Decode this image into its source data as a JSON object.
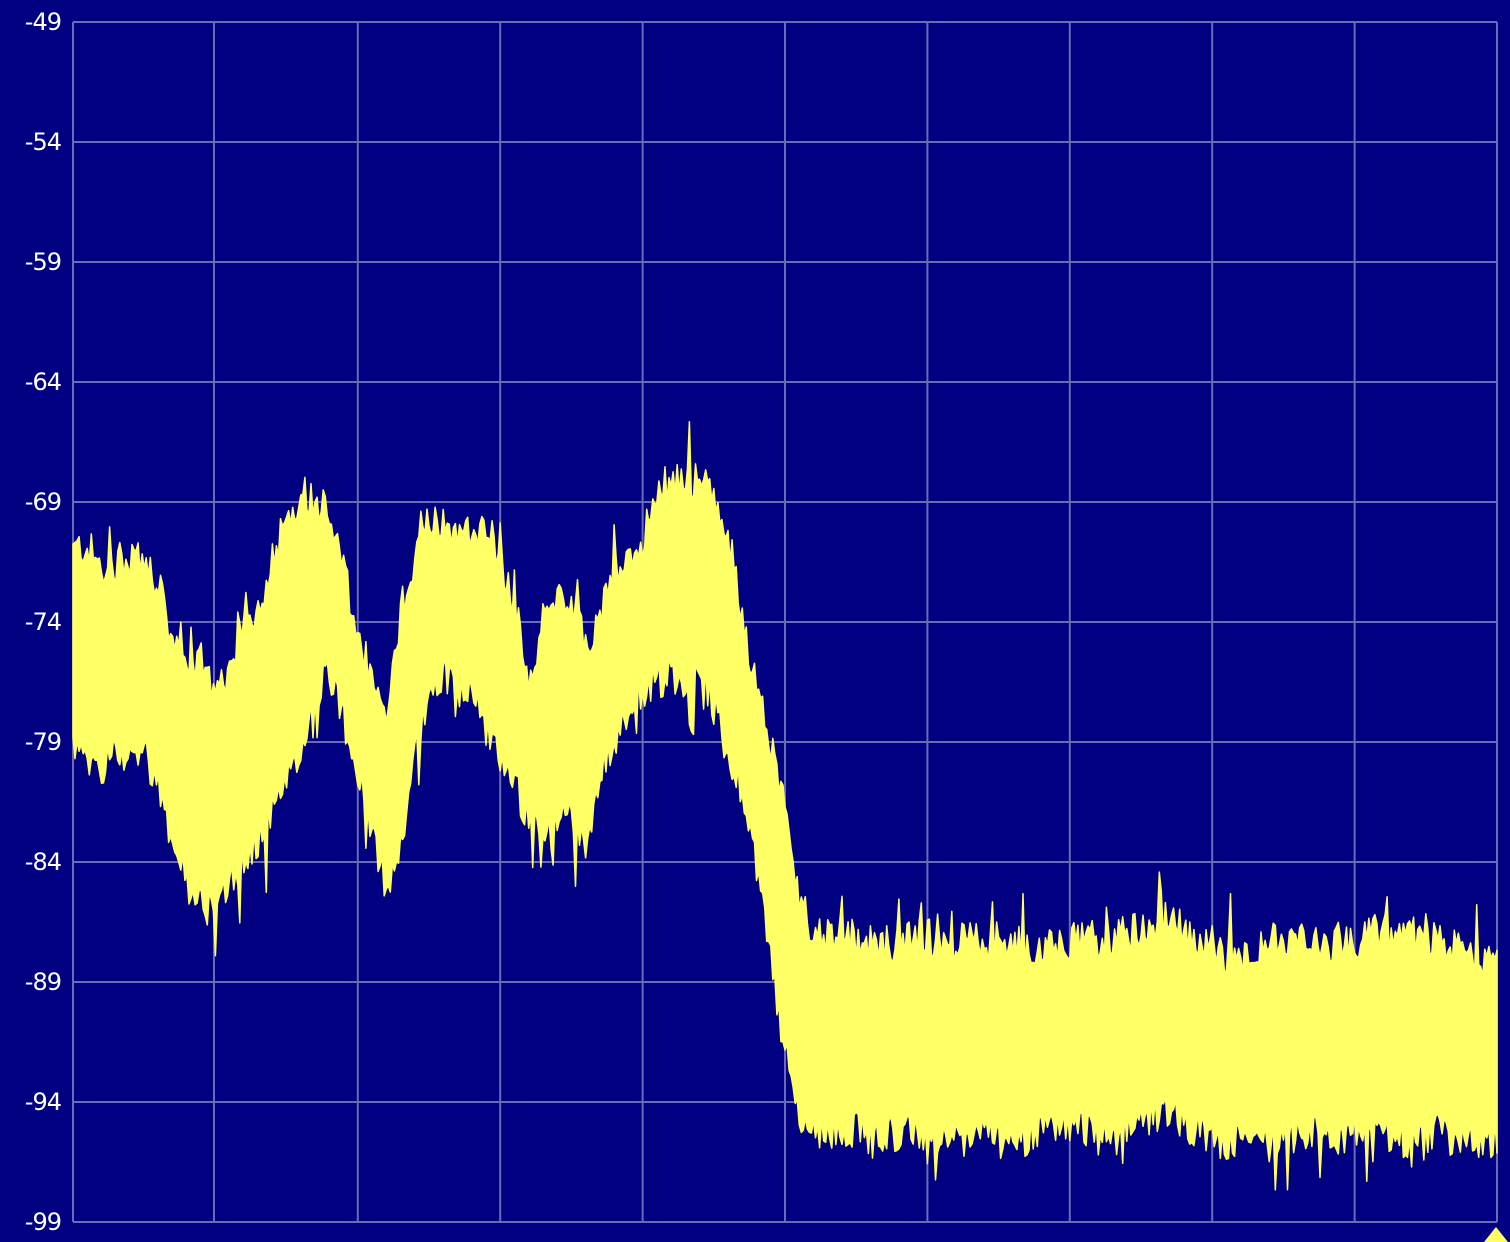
{
  "chart_data": {
    "type": "area",
    "title": "",
    "xlabel": "",
    "ylabel": "",
    "ylim": [
      -99,
      -49
    ],
    "y_ticks": [
      "-49",
      "-54",
      "-59",
      "-64",
      "-69",
      "-74",
      "-79",
      "-84",
      "-89",
      "-94",
      "-99"
    ],
    "x_range": [
      0,
      100
    ],
    "x_grid_positions": [
      0,
      9.9,
      20,
      30,
      40,
      50,
      60,
      70,
      80,
      90,
      100
    ],
    "grid": true,
    "legend": "none",
    "colors": {
      "background": "#000080",
      "grid": "#6a6ab8",
      "trace": "#ffff66",
      "tick_label": "#ffffff"
    },
    "series": [
      {
        "upper": {
          "x": [
            0,
            1,
            2,
            3,
            4,
            5,
            6,
            7,
            8,
            9,
            10,
            11,
            12,
            13,
            14,
            15,
            16,
            17,
            18,
            19,
            20,
            21,
            22,
            23,
            24,
            25,
            26,
            27,
            28,
            29,
            30,
            31,
            32,
            33,
            34,
            35,
            36,
            37,
            38,
            39,
            40,
            41,
            42,
            43,
            44,
            45,
            46,
            47,
            48,
            49,
            50,
            51,
            52,
            53,
            54,
            55,
            56,
            57,
            58,
            59,
            60,
            61,
            62,
            63,
            64,
            65,
            66,
            67,
            68,
            69,
            70,
            71,
            72,
            73,
            74,
            75,
            76,
            77,
            78,
            79,
            80,
            81,
            82,
            83,
            84,
            85,
            86,
            87,
            88,
            89,
            90,
            91,
            92,
            93,
            94,
            95,
            96,
            97,
            98,
            99,
            100
          ],
          "y": [
            -71.0,
            -70.8,
            -71.8,
            -71.6,
            -71.2,
            -71.5,
            -72.5,
            -74.8,
            -76.5,
            -75.4,
            -77.0,
            -76.4,
            -74.2,
            -73.4,
            -71.2,
            -69.6,
            -68.6,
            -68.8,
            -69.6,
            -71.8,
            -74.8,
            -76.2,
            -78.3,
            -73.6,
            -71.2,
            -70.0,
            -69.6,
            -70.4,
            -70.0,
            -70.0,
            -71.2,
            -73.2,
            -76.5,
            -74.0,
            -72.6,
            -73.4,
            -74.8,
            -73.8,
            -72.0,
            -71.6,
            -70.6,
            -68.4,
            -68.2,
            -68.0,
            -68.0,
            -69.0,
            -70.4,
            -73.6,
            -76.8,
            -79.0,
            -82.0,
            -85.6,
            -86.8,
            -87.0,
            -87.0,
            -87.2,
            -87.4,
            -87.4,
            -87.4,
            -87.2,
            -87.0,
            -87.6,
            -87.4,
            -87.2,
            -87.6,
            -87.2,
            -87.4,
            -87.6,
            -87.4,
            -87.2,
            -87.4,
            -87.0,
            -87.4,
            -87.2,
            -87.0,
            -86.8,
            -86.6,
            -86.2,
            -86.8,
            -87.2,
            -87.4,
            -87.8,
            -88.0,
            -87.6,
            -87.2,
            -87.6,
            -87.4,
            -87.2,
            -87.6,
            -87.2,
            -87.4,
            -87.0,
            -86.8,
            -87.4,
            -87.0,
            -87.2,
            -87.4,
            -87.6,
            -87.8,
            -88.0,
            -87.8
          ]
        },
        "lower": {
          "x": [
            0,
            1,
            2,
            3,
            4,
            5,
            6,
            7,
            8,
            9,
            10,
            11,
            12,
            13,
            14,
            15,
            16,
            17,
            18,
            19,
            20,
            21,
            22,
            23,
            24,
            25,
            26,
            27,
            28,
            29,
            30,
            31,
            32,
            33,
            34,
            35,
            36,
            37,
            38,
            39,
            40,
            41,
            42,
            43,
            44,
            45,
            46,
            47,
            48,
            49,
            50,
            51,
            52,
            53,
            54,
            55,
            56,
            57,
            58,
            59,
            60,
            61,
            62,
            63,
            64,
            65,
            66,
            67,
            68,
            69,
            70,
            71,
            72,
            73,
            74,
            75,
            76,
            77,
            78,
            79,
            80,
            81,
            82,
            83,
            84,
            85,
            86,
            87,
            88,
            89,
            90,
            91,
            92,
            93,
            94,
            95,
            96,
            97,
            98,
            99,
            100
          ],
          "y": [
            -79.0,
            -80.2,
            -80.0,
            -79.4,
            -79.6,
            -79.2,
            -81.0,
            -83.0,
            -85.0,
            -85.6,
            -85.4,
            -84.8,
            -84.0,
            -83.0,
            -82.0,
            -80.8,
            -79.6,
            -77.0,
            -76.0,
            -78.0,
            -80.2,
            -83.0,
            -85.0,
            -83.4,
            -79.6,
            -77.0,
            -76.0,
            -76.8,
            -77.0,
            -78.4,
            -79.6,
            -80.6,
            -82.4,
            -83.2,
            -82.4,
            -82.0,
            -83.2,
            -80.6,
            -79.0,
            -77.6,
            -76.8,
            -76.4,
            -76.2,
            -76.4,
            -75.6,
            -77.6,
            -79.6,
            -81.0,
            -84.0,
            -88.0,
            -92.0,
            -94.6,
            -95.2,
            -95.4,
            -95.0,
            -95.2,
            -95.6,
            -95.4,
            -95.2,
            -95.4,
            -95.8,
            -95.2,
            -95.6,
            -95.4,
            -95.2,
            -95.6,
            -95.4,
            -95.6,
            -95.2,
            -95.0,
            -95.2,
            -95.0,
            -95.4,
            -95.6,
            -95.2,
            -94.8,
            -94.6,
            -94.4,
            -94.8,
            -95.2,
            -95.6,
            -95.8,
            -95.6,
            -95.4,
            -95.8,
            -95.6,
            -95.4,
            -95.2,
            -95.6,
            -95.8,
            -95.4,
            -95.2,
            -95.6,
            -95.4,
            -95.8,
            -95.6,
            -95.2,
            -95.6,
            -95.8,
            -95.4,
            -95.6
          ]
        }
      }
    ]
  }
}
